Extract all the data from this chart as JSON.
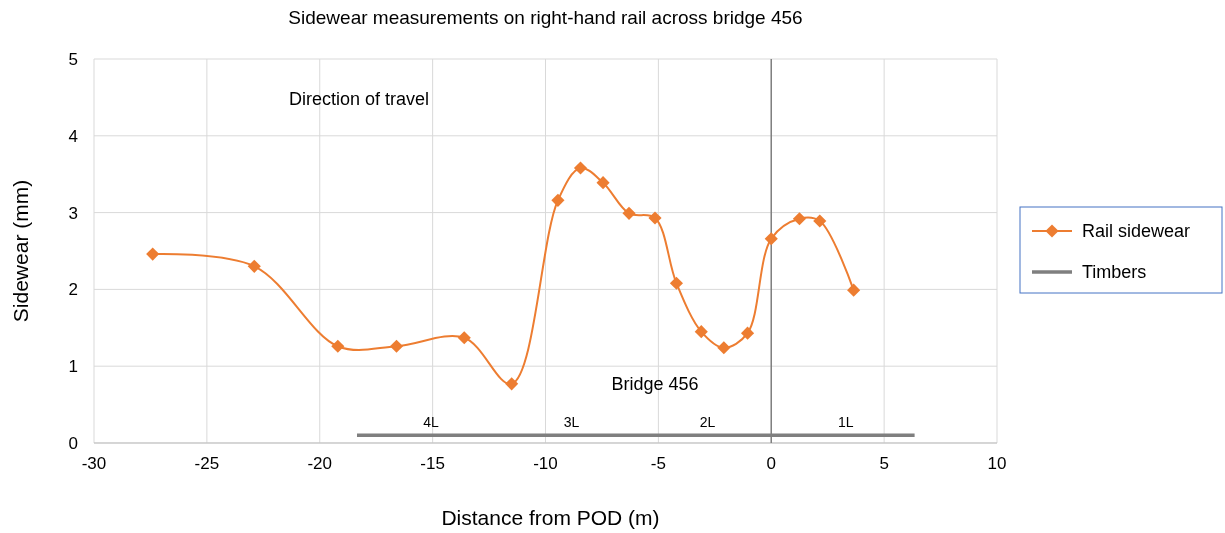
{
  "chart_data": {
    "type": "line",
    "title": "Sidewear measurements on right-hand rail across bridge 456",
    "xlabel": "Distance from POD (m)",
    "ylabel": "Sidewear (mm)",
    "xlim": [
      -30,
      10
    ],
    "xticks": [
      -30,
      -25,
      -20,
      -15,
      -10,
      -5,
      0,
      5,
      10
    ],
    "ylim": [
      0,
      5
    ],
    "yticks": [
      0,
      1,
      2,
      3,
      4,
      5
    ],
    "grid": true,
    "legend": "right",
    "series": [
      {
        "name": "Rail sidewear",
        "color": "#ed7d31",
        "marker": "diamond",
        "x": [
          -27.4,
          -22.9,
          -19.2,
          -16.6,
          -13.6,
          -11.5,
          -9.45,
          -8.45,
          -7.45,
          -6.3,
          -5.15,
          -4.2,
          -3.1,
          -2.1,
          -1.05,
          0,
          1.25,
          2.15,
          3.65
        ],
        "values": [
          2.46,
          2.3,
          1.26,
          1.26,
          1.37,
          0.77,
          3.16,
          3.58,
          3.39,
          2.99,
          2.93,
          2.08,
          1.45,
          1.24,
          1.43,
          2.66,
          2.92,
          2.89,
          1.99
        ]
      },
      {
        "name": "Timbers",
        "color": "#7f7f7f",
        "marker": "none",
        "x": [
          -18.35,
          -11.8,
          -5.9,
          0.25,
          6.35
        ],
        "values": [
          0.1,
          0.1,
          0.1,
          0.1,
          0.1
        ]
      }
    ],
    "ref_lines": [
      {
        "axis": "x",
        "value": 0,
        "color": "#808080"
      }
    ],
    "annotations": [
      "Direction of travel",
      "Bridge 456",
      "4L",
      "3L",
      "2L",
      "1L"
    ]
  }
}
